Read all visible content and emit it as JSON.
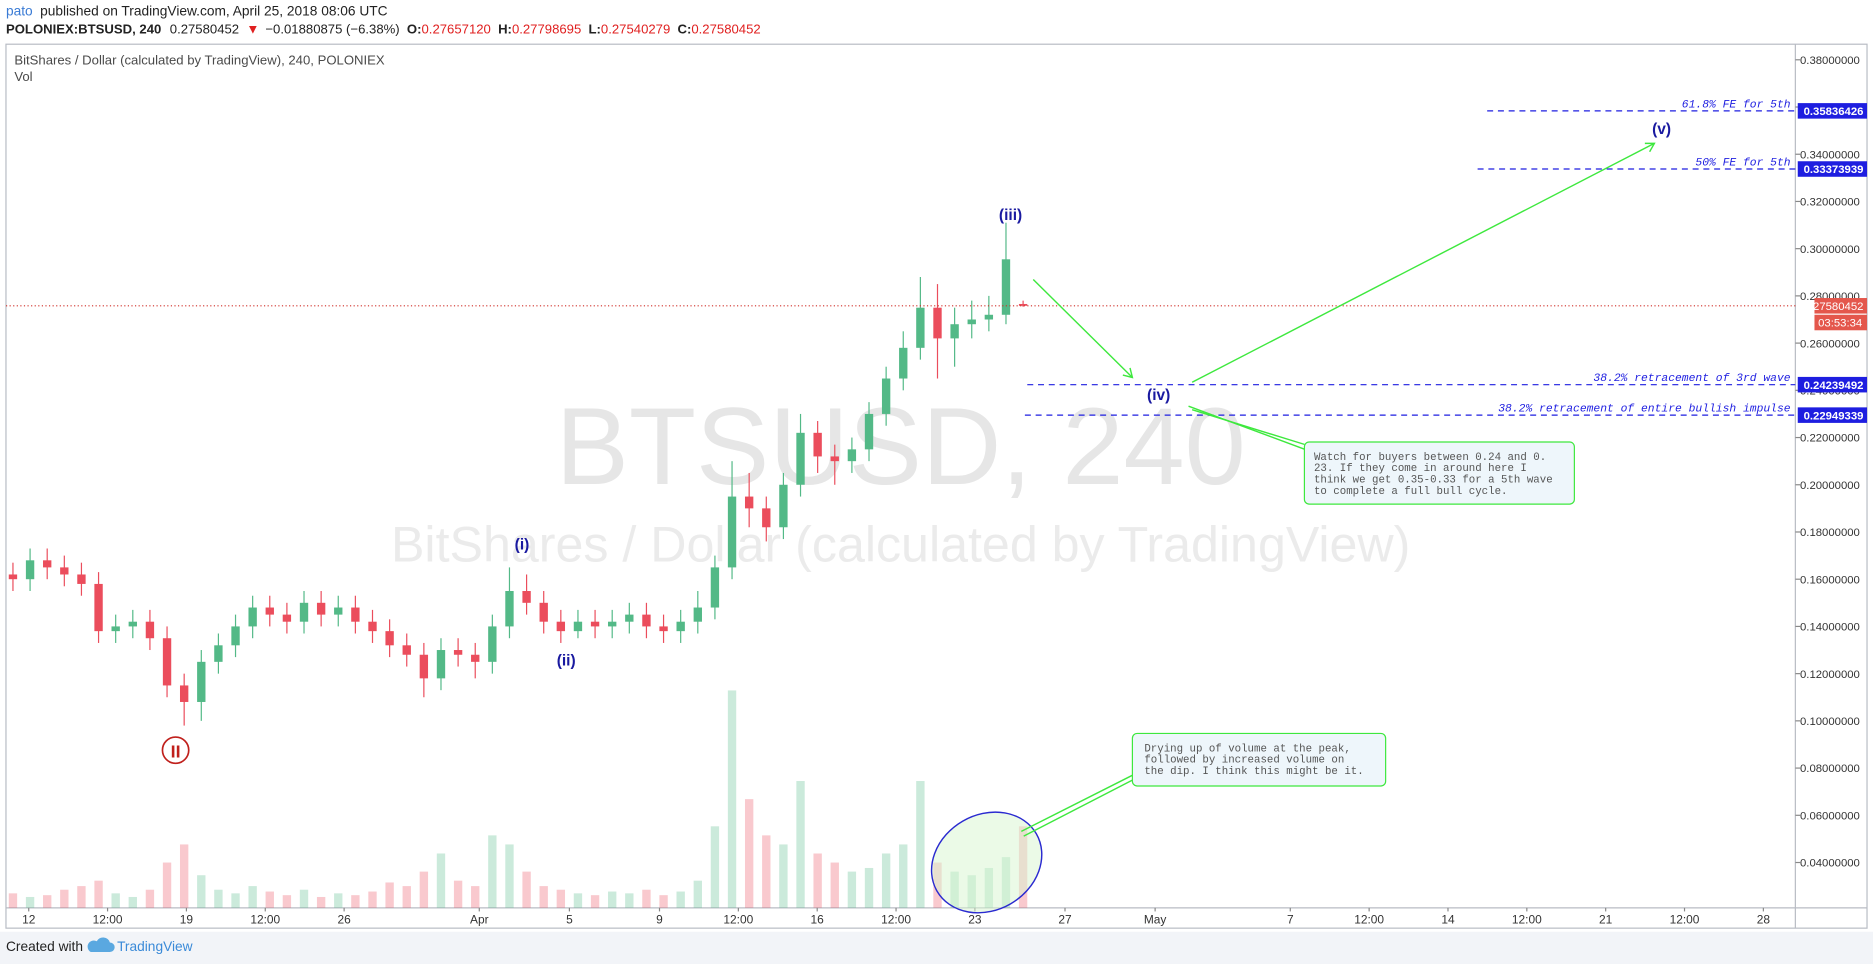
{
  "header": {
    "user": "pato",
    "published": "published on TradingView.com, April 25, 2018 08:06 UTC",
    "symbol": "POLONIEX:BTSUSD, 240",
    "last": "0.27580452",
    "arrow": "▼",
    "change": "−0.01880875 (−6.38%)",
    "ohlc": [
      {
        "label": "O:",
        "value": "0.27657120"
      },
      {
        "label": "H:",
        "value": "0.27798695"
      },
      {
        "label": "L:",
        "value": "0.27540279"
      },
      {
        "label": "C:",
        "value": "0.27580452"
      }
    ]
  },
  "chart_data": {
    "type": "candlestick",
    "title": "BitShares / Dollar (calculated by TradingView), 240, POLONIEX",
    "indicator": "Vol",
    "watermark": "BTSUSD, 240",
    "watermark_subtitle": "BitShares / Dollar (calculated by TradingView)",
    "up_color": "#53b987",
    "down_color": "#eb4d5c",
    "x": [
      11.3,
      12.06,
      12.82,
      13.58,
      14.34,
      15.1,
      15.86,
      16.62,
      17.38,
      18.14,
      18.9,
      19.66,
      20.42,
      21.18,
      21.94,
      22.7,
      23.46,
      24.22,
      24.98,
      25.74,
      26.5,
      27.26,
      28.02,
      28.78,
      29.54,
      30.3,
      31.06,
      31.82,
      32.58,
      33.34,
      34.1,
      34.86,
      35.62,
      36.38,
      37.14,
      37.9,
      38.66,
      39.42,
      40.18,
      40.94,
      41.7,
      42.46,
      43.22,
      43.98,
      44.74,
      45.5,
      46.26,
      47.02,
      47.78,
      48.54,
      49.3,
      50.06,
      50.82,
      51.58,
      52.34,
      53.1,
      53.86,
      54.62,
      55.38,
      56.14
    ],
    "open": [
      0.162,
      0.16,
      0.168,
      0.165,
      0.162,
      0.158,
      0.138,
      0.14,
      0.142,
      0.135,
      0.115,
      0.108,
      0.125,
      0.132,
      0.14,
      0.148,
      0.145,
      0.142,
      0.15,
      0.145,
      0.148,
      0.142,
      0.138,
      0.132,
      0.128,
      0.118,
      0.13,
      0.128,
      0.125,
      0.14,
      0.155,
      0.15,
      0.142,
      0.138,
      0.142,
      0.14,
      0.142,
      0.145,
      0.14,
      0.138,
      0.142,
      0.148,
      0.165,
      0.195,
      0.19,
      0.182,
      0.2,
      0.222,
      0.212,
      0.21,
      0.215,
      0.23,
      0.245,
      0.258,
      0.275,
      0.262,
      0.268,
      0.27,
      0.272,
      0.2765712
    ],
    "high": [
      0.167,
      0.173,
      0.173,
      0.17,
      0.167,
      0.163,
      0.145,
      0.147,
      0.147,
      0.14,
      0.12,
      0.13,
      0.137,
      0.145,
      0.153,
      0.153,
      0.15,
      0.155,
      0.155,
      0.153,
      0.153,
      0.147,
      0.143,
      0.137,
      0.133,
      0.135,
      0.135,
      0.133,
      0.145,
      0.165,
      0.162,
      0.155,
      0.147,
      0.147,
      0.147,
      0.147,
      0.15,
      0.15,
      0.145,
      0.147,
      0.155,
      0.17,
      0.21,
      0.205,
      0.195,
      0.205,
      0.23,
      0.227,
      0.217,
      0.22,
      0.235,
      0.25,
      0.265,
      0.288,
      0.285,
      0.275,
      0.278,
      0.28,
      0.311,
      0.27798695
    ],
    "low": [
      0.155,
      0.155,
      0.16,
      0.157,
      0.153,
      0.133,
      0.133,
      0.135,
      0.13,
      0.11,
      0.098,
      0.1,
      0.12,
      0.127,
      0.135,
      0.14,
      0.137,
      0.137,
      0.14,
      0.14,
      0.137,
      0.133,
      0.127,
      0.123,
      0.11,
      0.113,
      0.123,
      0.118,
      0.12,
      0.135,
      0.145,
      0.137,
      0.133,
      0.135,
      0.135,
      0.135,
      0.137,
      0.135,
      0.133,
      0.133,
      0.137,
      0.143,
      0.16,
      0.182,
      0.176,
      0.177,
      0.195,
      0.205,
      0.2,
      0.205,
      0.21,
      0.225,
      0.24,
      0.253,
      0.245,
      0.25,
      0.262,
      0.265,
      0.268,
      0.27540279
    ],
    "close": [
      0.16,
      0.168,
      0.165,
      0.162,
      0.158,
      0.138,
      0.14,
      0.142,
      0.135,
      0.115,
      0.108,
      0.125,
      0.132,
      0.14,
      0.148,
      0.145,
      0.142,
      0.15,
      0.145,
      0.148,
      0.142,
      0.138,
      0.132,
      0.128,
      0.118,
      0.13,
      0.128,
      0.125,
      0.14,
      0.155,
      0.15,
      0.142,
      0.138,
      0.142,
      0.14,
      0.142,
      0.145,
      0.14,
      0.138,
      0.142,
      0.148,
      0.165,
      0.195,
      0.19,
      0.182,
      0.2,
      0.222,
      0.212,
      0.21,
      0.215,
      0.23,
      0.245,
      0.258,
      0.275,
      0.262,
      0.268,
      0.27,
      0.272,
      0.2955,
      0.27580452
    ],
    "volume": [
      8,
      6,
      7,
      10,
      12,
      15,
      8,
      6,
      10,
      25,
      35,
      18,
      10,
      8,
      12,
      9,
      7,
      10,
      6,
      8,
      7,
      9,
      14,
      12,
      20,
      30,
      15,
      12,
      40,
      35,
      20,
      12,
      10,
      8,
      7,
      9,
      8,
      10,
      7,
      9,
      15,
      45,
      120,
      60,
      40,
      35,
      70,
      30,
      25,
      20,
      22,
      30,
      35,
      70,
      25,
      20,
      18,
      22,
      28,
      45
    ],
    "xlim": [
      10.99,
      90.42
    ],
    "xticks": [
      {
        "value": 12,
        "label": "12"
      },
      {
        "value": 15.5,
        "label": "12:00"
      },
      {
        "value": 19,
        "label": "19"
      },
      {
        "value": 22.5,
        "label": "12:00"
      },
      {
        "value": 26,
        "label": "26"
      },
      {
        "value": 32,
        "label": "Apr"
      },
      {
        "value": 36,
        "label": "5"
      },
      {
        "value": 40,
        "label": "9"
      },
      {
        "value": 43.5,
        "label": "12:00"
      },
      {
        "value": 47,
        "label": "16"
      },
      {
        "value": 50.5,
        "label": "12:00"
      },
      {
        "value": 54,
        "label": "23"
      },
      {
        "value": 58,
        "label": "27"
      },
      {
        "value": 62,
        "label": "May"
      },
      {
        "value": 68,
        "label": "7"
      },
      {
        "value": 71.5,
        "label": "12:00"
      },
      {
        "value": 75,
        "label": "14"
      },
      {
        "value": 78.5,
        "label": "12:00"
      },
      {
        "value": 82,
        "label": "21"
      },
      {
        "value": 85.5,
        "label": "12:00"
      },
      {
        "value": 89,
        "label": "28"
      }
    ],
    "ylim": [
      0.0208,
      0.3866
    ],
    "yticks": [
      {
        "value": 0.04,
        "label": "0.04000000"
      },
      {
        "value": 0.06,
        "label": "0.06000000"
      },
      {
        "value": 0.08,
        "label": "0.08000000"
      },
      {
        "value": 0.1,
        "label": "0.10000000"
      },
      {
        "value": 0.12,
        "label": "0.12000000"
      },
      {
        "value": 0.14,
        "label": "0.14000000"
      },
      {
        "value": 0.16,
        "label": "0.16000000"
      },
      {
        "value": 0.18,
        "label": "0.18000000"
      },
      {
        "value": 0.2,
        "label": "0.20000000"
      },
      {
        "value": 0.22,
        "label": "0.22000000"
      },
      {
        "value": 0.24,
        "label": "0.24000000"
      },
      {
        "value": 0.26,
        "label": "0.26000000"
      },
      {
        "value": 0.28,
        "label": "0.28000000"
      },
      {
        "value": 0.3,
        "label": "0.30000000"
      },
      {
        "value": 0.32,
        "label": "0.32000000"
      },
      {
        "value": 0.34,
        "label": "0.34000000"
      },
      {
        "value": 0.36,
        "label": "0.36000000"
      },
      {
        "value": 0.38,
        "label": "0.38000000"
      }
    ],
    "last_price": 0.27580452,
    "countdown": "03:53:34",
    "levels": [
      {
        "price": 0.35836426,
        "text": "61.8% FE for 5th"
      },
      {
        "price": 0.33373939,
        "text": "50% FE for 5th"
      },
      {
        "price": 0.24239492,
        "text": "38.2% retracement of 3rd wave"
      },
      {
        "price": 0.22949339,
        "text": "38.2% retracement of entire bullish impulse"
      }
    ],
    "wave_labels": [
      "(i)",
      "(ii)",
      "(iii)",
      "(iv)",
      "(v)"
    ],
    "cycle_label": "II",
    "callouts": [
      [
        "Watch for buyers between 0.24 and 0.",
        "23. If they come in around here I",
        "think we get 0.35-0.33 for a 5th wave",
        "to complete a full bull cycle."
      ],
      [
        "Drying up of volume at the peak,",
        "followed by increased volume on",
        "the dip. I think this might be it."
      ]
    ]
  },
  "footer": {
    "created": "Created with",
    "brand": "TradingView"
  }
}
